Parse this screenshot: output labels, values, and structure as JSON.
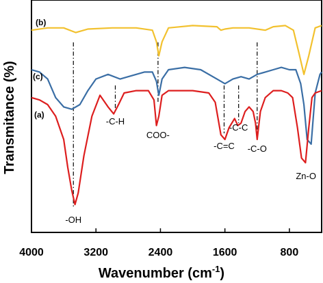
{
  "chart_data": {
    "type": "line",
    "xlabel": "Wavenumber (cm",
    "xlabel_sup": "-1",
    "xlabel_end": ")",
    "ylabel": "Transmitance (%)",
    "xlim": [
      4000,
      400
    ],
    "x_reversed": true,
    "x_ticks": [
      4000,
      3200,
      2400,
      1600,
      800
    ],
    "x_tick_labels": [
      "4000",
      "3200",
      "2400",
      "1600",
      "800"
    ],
    "y_ticks_shown": false,
    "grid": false,
    "series": [
      {
        "label": "(b)",
        "color": "#f2c12e",
        "baseline": 88,
        "points": [
          [
            4000,
            87
          ],
          [
            3800,
            88
          ],
          [
            3600,
            88
          ],
          [
            3450,
            86
          ],
          [
            3300,
            87.5
          ],
          [
            3000,
            88
          ],
          [
            2700,
            88
          ],
          [
            2500,
            87
          ],
          [
            2450,
            82
          ],
          [
            2420,
            76
          ],
          [
            2380,
            82
          ],
          [
            2300,
            88
          ],
          [
            2000,
            89
          ],
          [
            1700,
            88.5
          ],
          [
            1650,
            87
          ],
          [
            1600,
            87.5
          ],
          [
            1500,
            88
          ],
          [
            1300,
            88
          ],
          [
            1100,
            87
          ],
          [
            1000,
            88.5
          ],
          [
            850,
            89
          ],
          [
            750,
            87
          ],
          [
            680,
            77
          ],
          [
            620,
            68
          ],
          [
            560,
            76
          ],
          [
            480,
            88
          ],
          [
            400,
            89
          ]
        ]
      },
      {
        "label": "(c)",
        "color": "#3a6ea5",
        "baseline": 70,
        "points": [
          [
            4000,
            70
          ],
          [
            3900,
            69
          ],
          [
            3800,
            66
          ],
          [
            3700,
            58
          ],
          [
            3600,
            54
          ],
          [
            3500,
            53
          ],
          [
            3400,
            55
          ],
          [
            3300,
            61
          ],
          [
            3200,
            66
          ],
          [
            3050,
            68
          ],
          [
            2900,
            66
          ],
          [
            2800,
            67
          ],
          [
            2700,
            68
          ],
          [
            2600,
            69
          ],
          [
            2500,
            69
          ],
          [
            2450,
            65
          ],
          [
            2420,
            59
          ],
          [
            2380,
            66
          ],
          [
            2300,
            70
          ],
          [
            2100,
            71
          ],
          [
            1900,
            70
          ],
          [
            1700,
            66
          ],
          [
            1600,
            64
          ],
          [
            1500,
            66
          ],
          [
            1400,
            67
          ],
          [
            1300,
            66
          ],
          [
            1200,
            68
          ],
          [
            1100,
            69
          ],
          [
            1000,
            70
          ],
          [
            900,
            71
          ],
          [
            800,
            70
          ],
          [
            720,
            70
          ],
          [
            660,
            64
          ],
          [
            620,
            55
          ],
          [
            580,
            40
          ],
          [
            530,
            38
          ],
          [
            480,
            60
          ],
          [
            420,
            68
          ],
          [
            400,
            69
          ]
        ]
      },
      {
        "label": "(a)",
        "color": "#dd1e1e",
        "baseline": 60,
        "points": [
          [
            4000,
            58
          ],
          [
            3900,
            57
          ],
          [
            3800,
            55
          ],
          [
            3700,
            50
          ],
          [
            3600,
            40
          ],
          [
            3550,
            28
          ],
          [
            3500,
            18
          ],
          [
            3460,
            12
          ],
          [
            3420,
            17
          ],
          [
            3350,
            33
          ],
          [
            3250,
            50
          ],
          [
            3150,
            59
          ],
          [
            3050,
            54
          ],
          [
            2980,
            51
          ],
          [
            2920,
            55
          ],
          [
            2850,
            60
          ],
          [
            2700,
            61
          ],
          [
            2550,
            61
          ],
          [
            2480,
            57
          ],
          [
            2450,
            46
          ],
          [
            2420,
            50
          ],
          [
            2380,
            59
          ],
          [
            2300,
            61
          ],
          [
            2000,
            61
          ],
          [
            1800,
            60
          ],
          [
            1720,
            56
          ],
          [
            1650,
            42
          ],
          [
            1600,
            40
          ],
          [
            1550,
            45
          ],
          [
            1480,
            49
          ],
          [
            1440,
            46
          ],
          [
            1400,
            47
          ],
          [
            1350,
            52
          ],
          [
            1300,
            54
          ],
          [
            1250,
            52
          ],
          [
            1220,
            47
          ],
          [
            1200,
            40
          ],
          [
            1160,
            52
          ],
          [
            1100,
            58
          ],
          [
            1000,
            61
          ],
          [
            900,
            61
          ],
          [
            820,
            60
          ],
          [
            760,
            58
          ],
          [
            700,
            45
          ],
          [
            650,
            32
          ],
          [
            600,
            30
          ],
          [
            560,
            45
          ],
          [
            520,
            58
          ],
          [
            480,
            60
          ],
          [
            400,
            61
          ]
        ]
      }
    ],
    "dashed_lines": [
      {
        "x": 3480,
        "label": "-OH"
      },
      {
        "x": 2960,
        "label": "-C-H"
      },
      {
        "x": 2430,
        "label": "COO-"
      },
      {
        "x": 1610,
        "label": "-C=C"
      },
      {
        "x": 1430,
        "label": "-C-C"
      },
      {
        "x": 1200,
        "label": "-C-O"
      }
    ],
    "extra_annotation": {
      "x": 560,
      "label": "Zn-O"
    }
  }
}
